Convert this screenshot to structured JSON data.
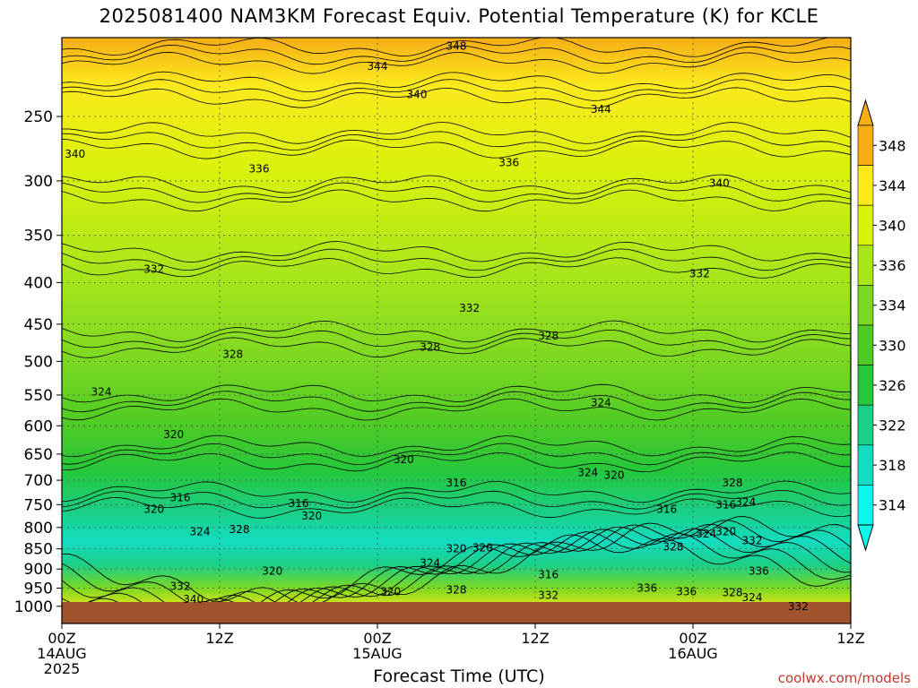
{
  "chart_data": {
    "type": "heatmap",
    "title": "2025081400 NAM3KM Forecast Equiv. Potential Temperature (K) for KCLE",
    "xlabel": "Forecast Time (UTC)",
    "ylabel": "",
    "y_scale": "log-pressure (inverted)",
    "ylim": [
      1050,
      200
    ],
    "y_ticks": [
      "250",
      "300",
      "350",
      "400",
      "450",
      "500",
      "550",
      "600",
      "650",
      "700",
      "750",
      "800",
      "850",
      "900",
      "950",
      "1000"
    ],
    "x_range_hours": [
      0,
      60
    ],
    "x_ticks": [
      {
        "hour": 0,
        "lines": [
          "00Z",
          "14AUG",
          "2025"
        ]
      },
      {
        "hour": 12,
        "lines": [
          "12Z"
        ]
      },
      {
        "hour": 24,
        "lines": [
          "00Z",
          "15AUG"
        ]
      },
      {
        "hour": 36,
        "lines": [
          "12Z"
        ]
      },
      {
        "hour": 48,
        "lines": [
          "00Z",
          "16AUG"
        ]
      },
      {
        "hour": 60,
        "lines": [
          "12Z"
        ]
      }
    ],
    "grid": true,
    "legend_position": "right",
    "colorbar_levels": [
      "348",
      "344",
      "340",
      "336",
      "334",
      "330",
      "326",
      "322",
      "318",
      "314"
    ],
    "colorbar_colors": [
      "#f6ad16",
      "#fbe91c",
      "#dbf20c",
      "#a8e61a",
      "#7cd821",
      "#4dcb24",
      "#25c73c",
      "#1acf86",
      "#14dcc2",
      "#0ef5ec"
    ],
    "contour_levels": [
      {
        "value": 348,
        "p": 210
      },
      {
        "value": 344,
        "p": 232
      },
      {
        "value": 340,
        "p": 268
      },
      {
        "value": 336,
        "p": 310
      },
      {
        "value": 332,
        "p": 375
      },
      {
        "value": 328,
        "p": 470
      },
      {
        "value": 324,
        "p": 560
      },
      {
        "value": 320,
        "p": 650
      },
      {
        "value": 316,
        "p": 740
      }
    ],
    "contour_labels": [
      {
        "text": "348",
        "hour": 30,
        "p": 205
      },
      {
        "text": "344",
        "hour": 24,
        "p": 217
      },
      {
        "text": "340",
        "hour": 27,
        "p": 235
      },
      {
        "text": "344",
        "hour": 41,
        "p": 245
      },
      {
        "text": "340",
        "hour": 1,
        "p": 278
      },
      {
        "text": "336",
        "hour": 15,
        "p": 290
      },
      {
        "text": "336",
        "hour": 34,
        "p": 285
      },
      {
        "text": "340",
        "hour": 50,
        "p": 302
      },
      {
        "text": "332",
        "hour": 7,
        "p": 385
      },
      {
        "text": "332",
        "hour": 48.5,
        "p": 390
      },
      {
        "text": "332",
        "hour": 31,
        "p": 430
      },
      {
        "text": "328",
        "hour": 13,
        "p": 490
      },
      {
        "text": "328",
        "hour": 28,
        "p": 480
      },
      {
        "text": "328",
        "hour": 37,
        "p": 465
      },
      {
        "text": "324",
        "hour": 3,
        "p": 545
      },
      {
        "text": "324",
        "hour": 41,
        "p": 562
      },
      {
        "text": "320",
        "hour": 8.5,
        "p": 615
      },
      {
        "text": "320",
        "hour": 26,
        "p": 660
      },
      {
        "text": "324",
        "hour": 40,
        "p": 685
      },
      {
        "text": "320",
        "hour": 42,
        "p": 690
      },
      {
        "text": "316",
        "hour": 30,
        "p": 705
      },
      {
        "text": "316",
        "hour": 9,
        "p": 735
      },
      {
        "text": "316",
        "hour": 18,
        "p": 748
      },
      {
        "text": "320",
        "hour": 7,
        "p": 760
      },
      {
        "text": "320",
        "hour": 19,
        "p": 775
      },
      {
        "text": "328",
        "hour": 13.5,
        "p": 805
      },
      {
        "text": "324",
        "hour": 10.5,
        "p": 810
      },
      {
        "text": "316",
        "hour": 46,
        "p": 760
      },
      {
        "text": "316",
        "hour": 50.5,
        "p": 750
      },
      {
        "text": "324",
        "hour": 52,
        "p": 745
      },
      {
        "text": "328",
        "hour": 51,
        "p": 705
      },
      {
        "text": "324",
        "hour": 49,
        "p": 815
      },
      {
        "text": "320",
        "hour": 50.5,
        "p": 810
      },
      {
        "text": "332",
        "hour": 52.5,
        "p": 830
      },
      {
        "text": "328",
        "hour": 46.5,
        "p": 845
      },
      {
        "text": "320",
        "hour": 30,
        "p": 850
      },
      {
        "text": "320",
        "hour": 32,
        "p": 848
      },
      {
        "text": "324",
        "hour": 28,
        "p": 885
      },
      {
        "text": "320",
        "hour": 16,
        "p": 905
      },
      {
        "text": "332",
        "hour": 9,
        "p": 945
      },
      {
        "text": "340",
        "hour": 10,
        "p": 980
      },
      {
        "text": "316",
        "hour": 37,
        "p": 915
      },
      {
        "text": "320",
        "hour": 25,
        "p": 960
      },
      {
        "text": "328",
        "hour": 30,
        "p": 955
      },
      {
        "text": "332",
        "hour": 37,
        "p": 970
      },
      {
        "text": "336",
        "hour": 44.5,
        "p": 950
      },
      {
        "text": "336",
        "hour": 47.5,
        "p": 960
      },
      {
        "text": "328",
        "hour": 51,
        "p": 962
      },
      {
        "text": "324",
        "hour": 52.5,
        "p": 975
      },
      {
        "text": "336",
        "hour": 53,
        "p": 905
      },
      {
        "text": "332",
        "hour": 56,
        "p": 1000
      }
    ],
    "ground_color": "#a0522d"
  },
  "credit": "coolwx.com/models"
}
